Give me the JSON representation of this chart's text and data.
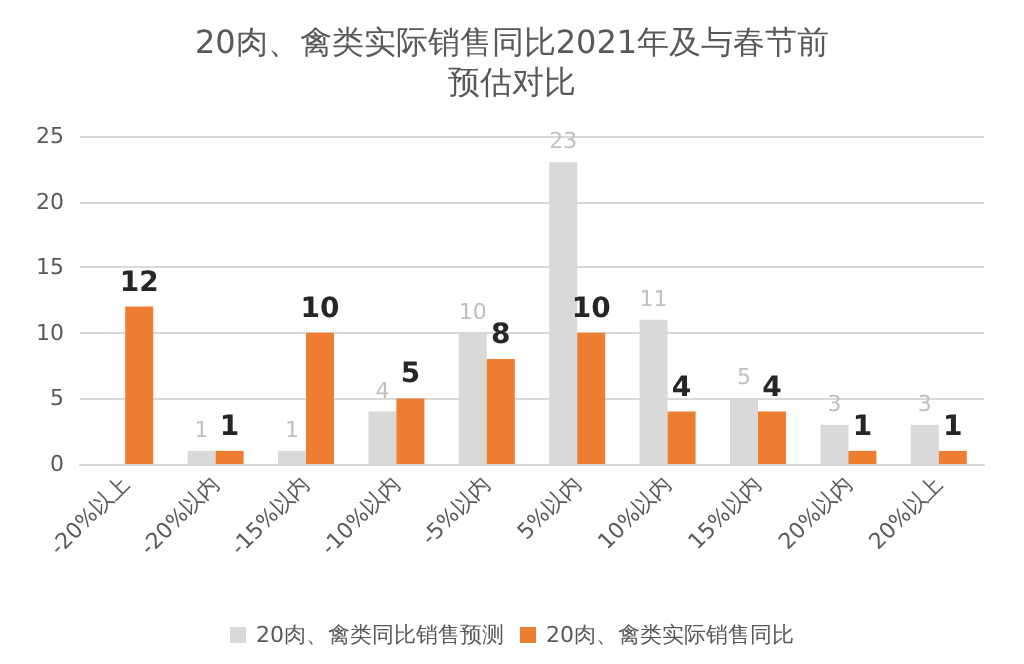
{
  "chart_data": {
    "type": "bar",
    "title": "20肉、禽类实际销售同比2021年及与春节前预估对比",
    "categories": [
      "-20%以上",
      "-20%以内",
      "-15%以内",
      "-10%以内",
      "-5%以内",
      "5%以内",
      "10%以内",
      "15%以内",
      "20%以内",
      "20%以上"
    ],
    "series": [
      {
        "name": "20肉、禽类同比销售预测",
        "color": "#d9d9d9",
        "values": [
          null,
          1,
          1,
          4,
          10,
          23,
          11,
          5,
          3,
          3
        ]
      },
      {
        "name": "20肉、禽类实际销售同比",
        "color": "#ed7d31",
        "values": [
          12,
          1,
          10,
          5,
          8,
          10,
          4,
          4,
          1,
          1
        ]
      }
    ],
    "ylim": [
      0,
      25
    ],
    "yticks": [
      0,
      5,
      10,
      15,
      20,
      25
    ],
    "grid": "y",
    "legend": "bottom",
    "data_labels": true
  }
}
